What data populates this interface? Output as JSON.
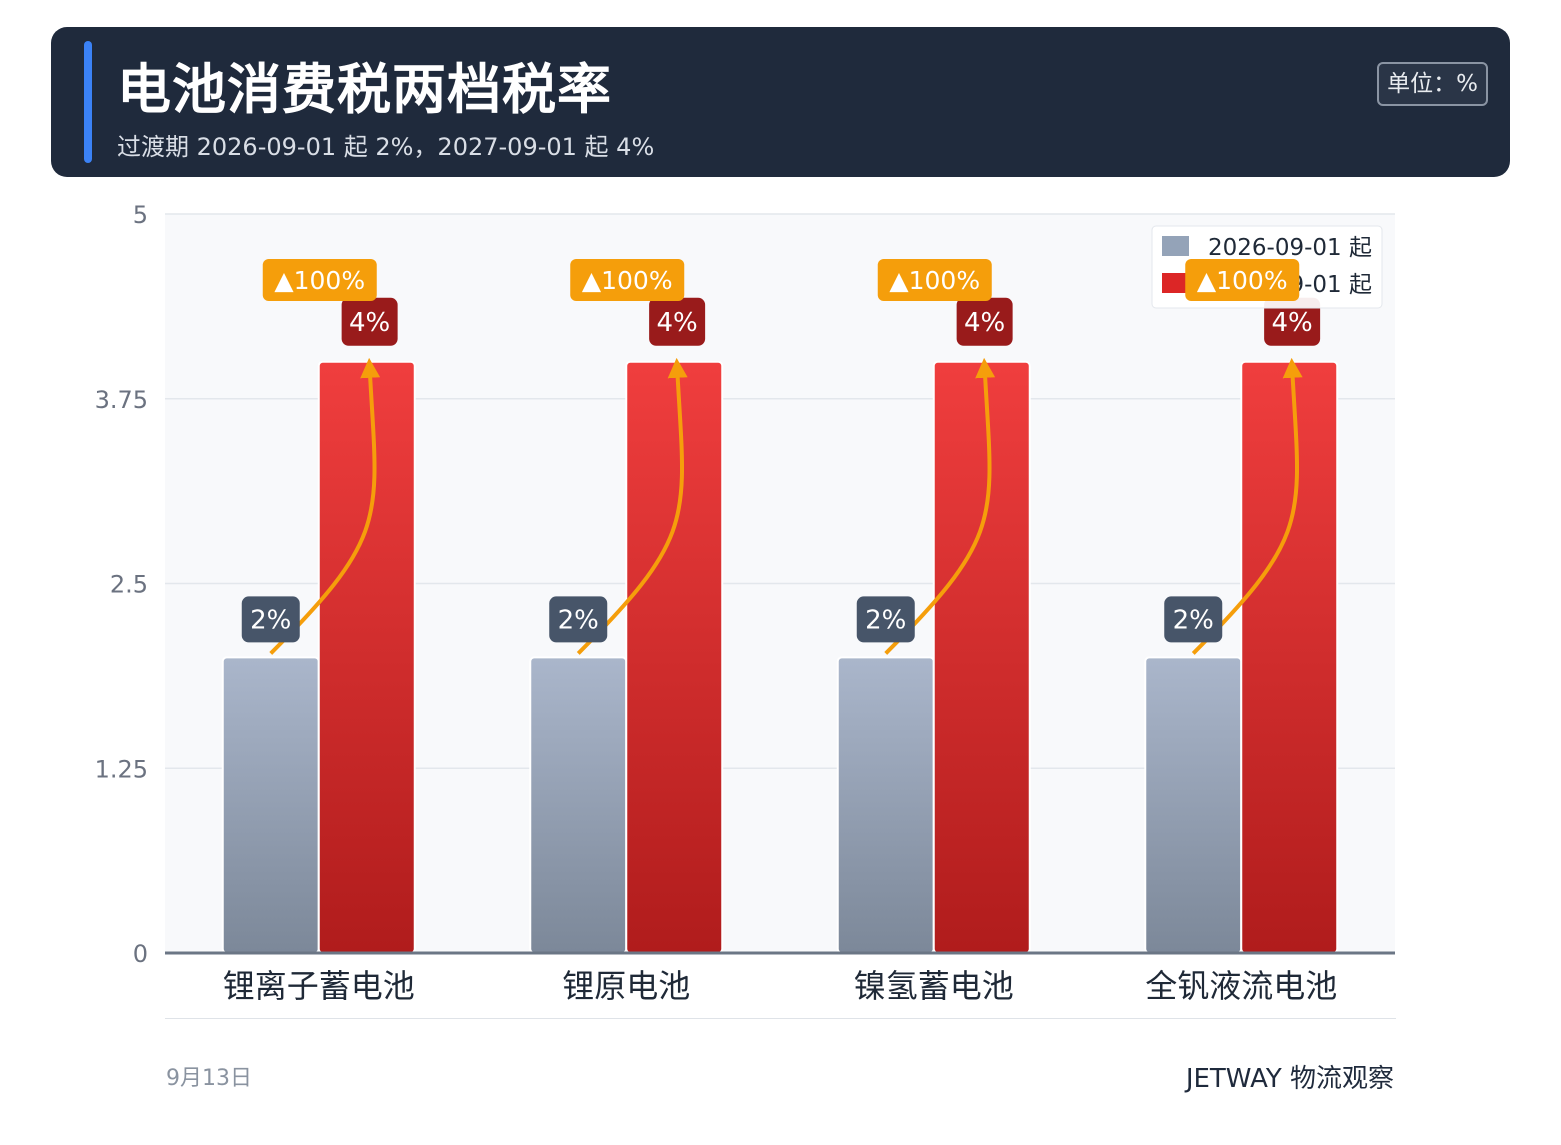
{
  "header": {
    "title": "电池消费税两档税率",
    "subtitle": "过渡期 2026-09-01 起 2%，2027-09-01 起 4%",
    "unit": "单位：%"
  },
  "colors": {
    "header_bg": "#1f2a3c",
    "accent": "#3b82f6",
    "series1": "#94a3b8",
    "series2": "#dc2626",
    "label1_bg": "#475569",
    "label2_bg": "#991b1b",
    "change_badge": "#f59e0b",
    "arrow": "#f59e0b"
  },
  "chart_data": {
    "type": "bar",
    "categories": [
      "锂离子蓄电池",
      "锂原电池",
      "镍氢蓄电池",
      "全钒液流电池"
    ],
    "series": [
      {
        "name": "2026-09-01 起",
        "values": [
          2,
          2,
          2,
          2
        ],
        "labels": [
          "2%",
          "2%",
          "2%",
          "2%"
        ]
      },
      {
        "name": "2027-09-01 起",
        "values": [
          4,
          4,
          4,
          4
        ],
        "labels": [
          "4%",
          "4%",
          "4%",
          "4%"
        ]
      }
    ],
    "change_labels": [
      "▲100%",
      "▲100%",
      "▲100%",
      "▲100%"
    ],
    "ylim": [
      0,
      5
    ],
    "yticks": [
      "0",
      "1.25",
      "2.5",
      "3.75",
      "5"
    ],
    "grid": true,
    "legend_position": "top-right"
  },
  "footer": {
    "date": "9月13日",
    "brand": "JETWAY 物流观察"
  }
}
